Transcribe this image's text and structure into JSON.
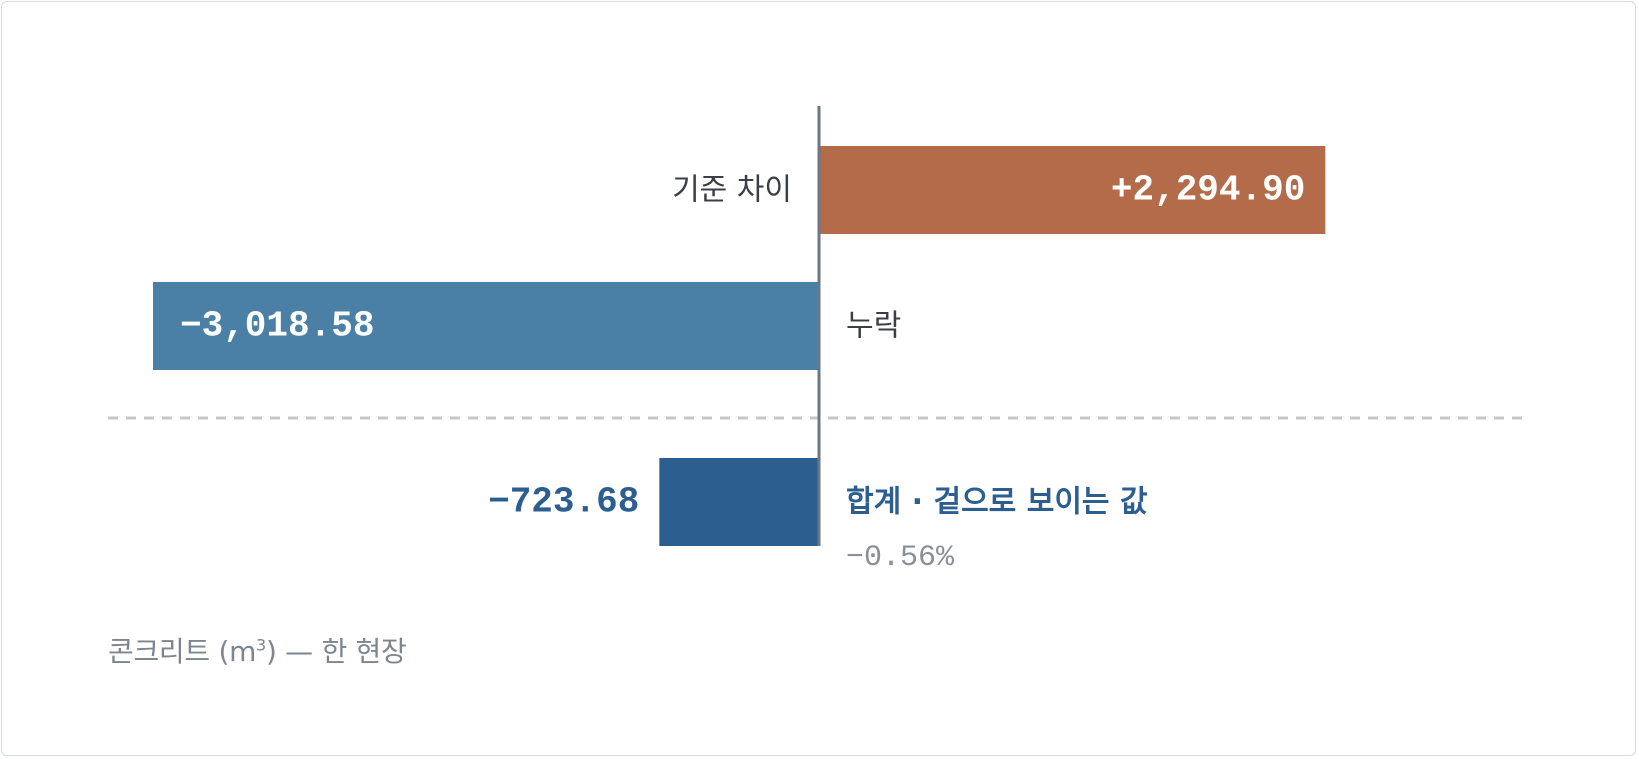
{
  "chart_data": {
    "type": "bar",
    "orientation": "horizontal",
    "categories": [
      "기준 차이",
      "누락",
      "합계 · 겉으로 보이는 값"
    ],
    "values": [
      2294.9,
      -3018.58,
      -723.68
    ],
    "value_labels": [
      "+2,294.90",
      "−3,018.58",
      "−723.68"
    ],
    "total_index": 2,
    "total_percent_label": "−0.56%",
    "colors": {
      "positive": "#b36b4a",
      "negative": "#4a80a6",
      "total": "#2c5f8f",
      "baseline": "#6b7787",
      "separator": "#c4c8cd",
      "label_text": "#3b3f45",
      "total_text": "#2c5f8f",
      "muted_text": "#8a9099"
    },
    "grid": false,
    "legend": "none"
  },
  "caption": {
    "text": "콘크리트 (m",
    "unit_superscript": "3",
    "suffix": ") — 한 현장"
  }
}
